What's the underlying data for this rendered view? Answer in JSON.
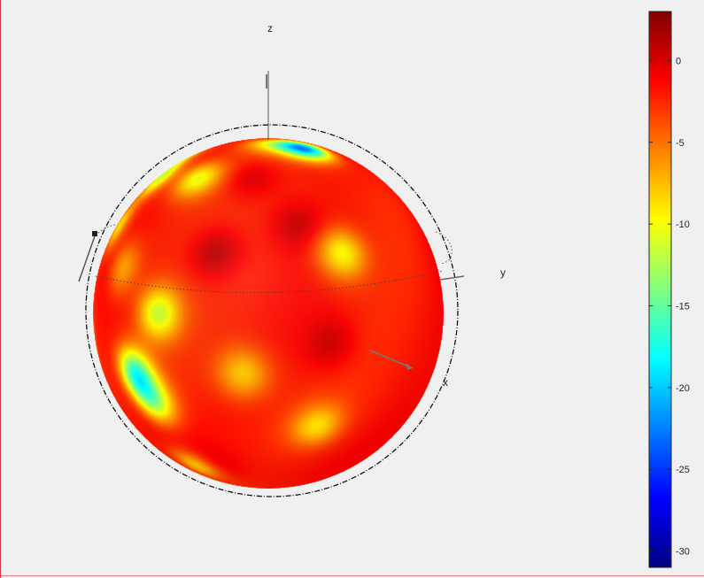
{
  "chart_data": {
    "type": "heatmap",
    "title": "",
    "axes": {
      "x": "x",
      "y": "y",
      "z": "z"
    },
    "colorbar": {
      "colormap": "jet",
      "clim": [
        -31,
        3
      ],
      "ticks": [
        0,
        -5,
        -10,
        -15,
        -20,
        -25,
        -30
      ],
      "tick_labels": [
        "0",
        "-5",
        "-10",
        "-15",
        "-20",
        "-25",
        "-30"
      ]
    },
    "surface": {
      "shape": "sphere",
      "background_level": -2,
      "spots": [
        {
          "theta_deg": 40,
          "phi_deg": 20,
          "value": 0.5
        },
        {
          "theta_deg": 70,
          "phi_deg": 10,
          "value": 1.5
        },
        {
          "theta_deg": 120,
          "phi_deg": -70,
          "value": 1.0
        },
        {
          "theta_deg": 60,
          "phi_deg": 40,
          "value": 0.5
        },
        {
          "theta_deg": 150,
          "phi_deg": -10,
          "value": 0.0
        },
        {
          "theta_deg": 100,
          "phi_deg": 50,
          "value": 0.5
        },
        {
          "theta_deg": 75,
          "phi_deg": -30,
          "value": -7
        },
        {
          "theta_deg": 60,
          "phi_deg": -50,
          "value": -9
        },
        {
          "theta_deg": 90,
          "phi_deg": -10,
          "value": -11
        },
        {
          "theta_deg": 110,
          "phi_deg": -25,
          "value": -16
        },
        {
          "theta_deg": 120,
          "phi_deg": -20,
          "value": -12
        },
        {
          "theta_deg": 150,
          "phi_deg": -25,
          "value": -9
        },
        {
          "theta_deg": 110,
          "phi_deg": 20,
          "value": -8
        },
        {
          "theta_deg": 130,
          "phi_deg": 50,
          "value": -8
        },
        {
          "theta_deg": 95,
          "phi_deg": -70,
          "value": -14
        },
        {
          "theta_deg": 40,
          "phi_deg": -45,
          "value": -11
        },
        {
          "theta_deg": 40,
          "phi_deg": -10,
          "value": -10
        },
        {
          "theta_deg": 70,
          "phi_deg": 55,
          "value": -10
        },
        {
          "theta_deg": 20,
          "phi_deg": 65,
          "value": -22
        },
        {
          "theta_deg": 15,
          "phi_deg": 30,
          "value": -8
        },
        {
          "theta_deg": 30,
          "phi_deg": -60,
          "value": -9
        }
      ]
    },
    "grid": false,
    "colorbar_placement": "right"
  }
}
